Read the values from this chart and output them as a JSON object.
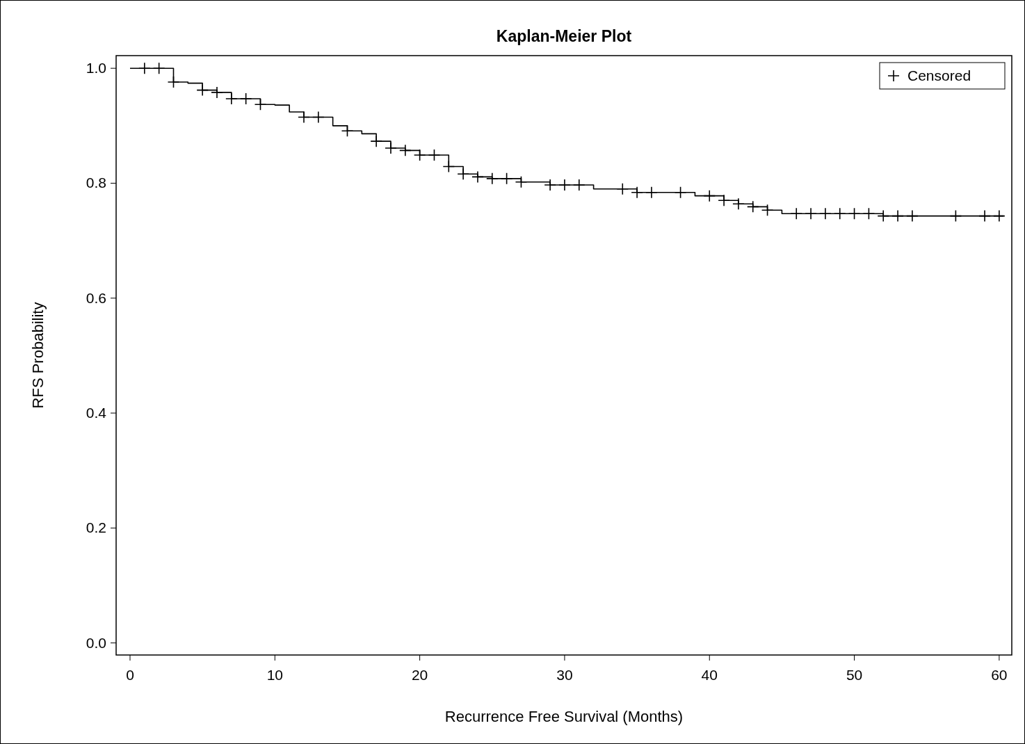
{
  "chart_data": {
    "type": "step",
    "title": "Kaplan-Meier Plot",
    "xlabel": "Recurrence Free Survival (Months)",
    "ylabel": "RFS Probability",
    "xlim": [
      -0.96,
      60.87
    ],
    "ylim": [
      -0.021,
      1.022
    ],
    "xticks": [
      0,
      10,
      20,
      30,
      40,
      50,
      60
    ],
    "yticks": [
      {
        "value": 0,
        "label": "0.0"
      },
      0.2,
      0.4,
      0.6,
      0.8,
      {
        "value": 1,
        "label": "1.0"
      }
    ],
    "grid": false,
    "legend": "top right",
    "series": [
      {
        "color": "#000000",
        "x": [
          0,
          3,
          4,
          5,
          6,
          7,
          9,
          10,
          11,
          12,
          14,
          15,
          16,
          17,
          18,
          19,
          20,
          22,
          23,
          24,
          25,
          27,
          29,
          32,
          35,
          39,
          41,
          42,
          43,
          44,
          45,
          52,
          60.3
        ],
        "values": [
          1,
          0.976,
          0.974,
          0.962,
          0.958,
          0.947,
          0.937,
          0.936,
          0.924,
          0.915,
          0.9,
          0.891,
          0.886,
          0.873,
          0.861,
          0.857,
          0.849,
          0.829,
          0.816,
          0.811,
          0.808,
          0.802,
          0.797,
          0.79,
          0.784,
          0.778,
          0.77,
          0.764,
          0.759,
          0.753,
          0.747,
          0.743,
          0.743
        ]
      },
      {
        "type": "scatter",
        "name": "Censored",
        "color": "#000000",
        "marker": "cross",
        "x": [
          1,
          2,
          3,
          5,
          6,
          7,
          8,
          9,
          12,
          13,
          15,
          17,
          18,
          19,
          20,
          21,
          22,
          23,
          24,
          25,
          26,
          27,
          29,
          30,
          31,
          34,
          35,
          36,
          38,
          40,
          41,
          42,
          43,
          44,
          46,
          47,
          48,
          49,
          50,
          51,
          52,
          53,
          54,
          57,
          59,
          60
        ],
        "values": [
          1,
          1,
          0.976,
          0.962,
          0.958,
          0.947,
          0.947,
          0.937,
          0.915,
          0.915,
          0.891,
          0.873,
          0.861,
          0.857,
          0.849,
          0.849,
          0.829,
          0.816,
          0.811,
          0.808,
          0.808,
          0.802,
          0.797,
          0.797,
          0.797,
          0.79,
          0.784,
          0.784,
          0.784,
          0.778,
          0.77,
          0.764,
          0.759,
          0.753,
          0.747,
          0.747,
          0.747,
          0.747,
          0.747,
          0.747,
          0.743,
          0.743,
          0.743,
          0.743,
          0.743,
          0.743
        ]
      }
    ]
  }
}
